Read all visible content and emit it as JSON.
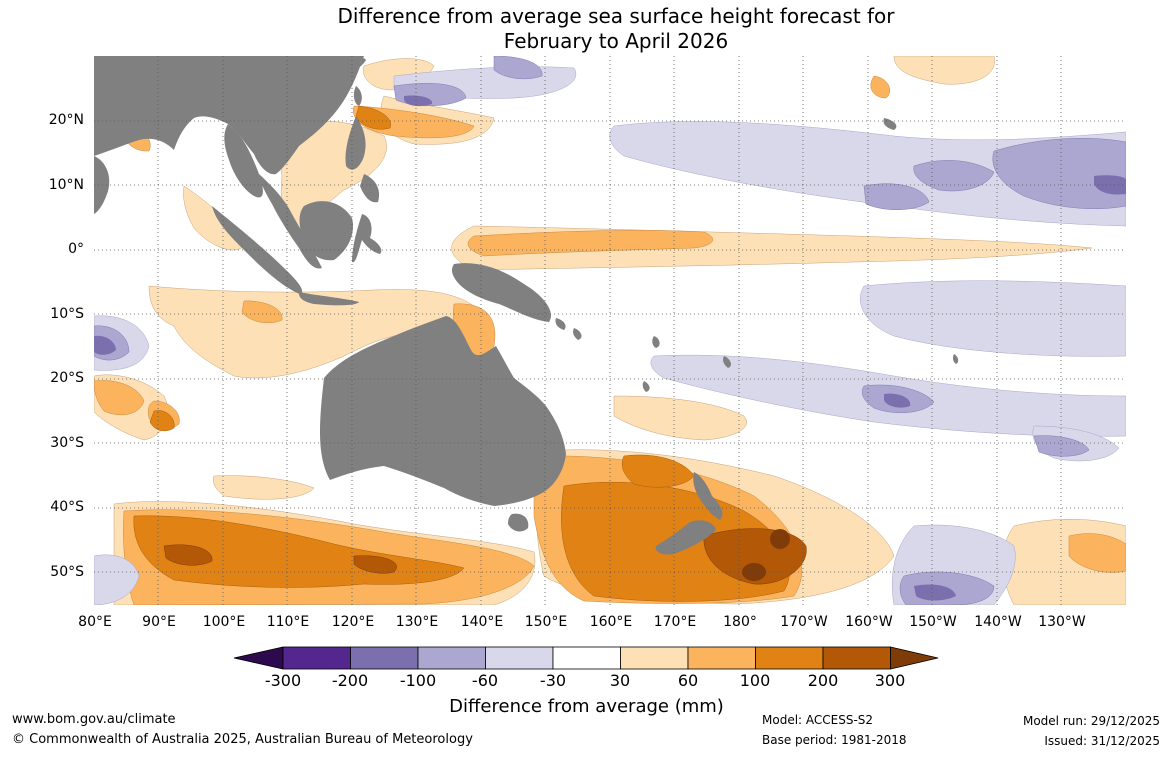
{
  "title": {
    "line1": "Difference from average sea surface height forecast for",
    "line2": "February to April 2026"
  },
  "map": {
    "land_color": "#808080",
    "ocean_color": "#ffffff",
    "gridline_style": "dotted",
    "lat_labels": [
      "20°N",
      "10°N",
      "0°",
      "10°S",
      "20°S",
      "30°S",
      "40°S",
      "50°S"
    ],
    "lon_labels": [
      "80°E",
      "90°E",
      "100°E",
      "110°E",
      "120°E",
      "130°E",
      "140°E",
      "150°E",
      "160°E",
      "170°E",
      "180°",
      "170°W",
      "160°W",
      "150°W",
      "140°W",
      "130°W"
    ]
  },
  "legend": {
    "title": "Difference from average (mm)",
    "ticks": [
      "-300",
      "-200",
      "-100",
      "-60",
      "-30",
      "30",
      "60",
      "100",
      "200",
      "300"
    ],
    "colors": {
      "below_-300": "#2d0a4e",
      "-300_-200": "#54278f",
      "-200_-100": "#7b6fae",
      "-100_-60": "#aca7d0",
      "-60_-30": "#d9d8ea",
      "-30_30": "#ffffff",
      "30_60": "#fde0b6",
      "60_100": "#fbb35e",
      "100_200": "#e08214",
      "200_300": "#b35806",
      "above_300": "#7f3b08"
    }
  },
  "footer": {
    "website": "www.bom.gov.au/climate",
    "copyright": "© Commonwealth of Australia 2025, Australian Bureau of Meteorology",
    "model": "Model: ACCESS-S2",
    "base_period": "Base period: 1981-2018",
    "model_run": "Model run: 29/12/2025",
    "issued": "Issued: 31/12/2025"
  }
}
